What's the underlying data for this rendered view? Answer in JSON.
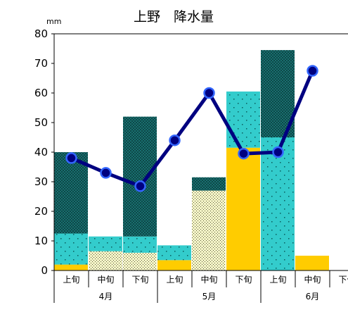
{
  "chart_data": {
    "type": "bar",
    "title": "上野　降水量",
    "ylabel": "mm",
    "ylim": [
      0,
      80
    ],
    "yticks": [
      0,
      10,
      20,
      30,
      40,
      50,
      60,
      70,
      80
    ],
    "categories": [
      "上旬",
      "中旬",
      "下旬",
      "上旬",
      "中旬",
      "下旬",
      "上旬",
      "中旬",
      "下旬"
    ],
    "months": [
      "4月",
      "5月",
      "6月"
    ],
    "stacked": true,
    "series": [
      {
        "values": [
          2,
          0,
          0,
          3.5,
          0,
          41.5,
          0,
          5,
          0
        ],
        "color": "#ffcc00",
        "pattern": "solid"
      },
      {
        "values": [
          0,
          6.5,
          6,
          0,
          27,
          0,
          0,
          0,
          0
        ],
        "color": "#f5f5c8",
        "pattern": "dots-dark"
      },
      {
        "values": [
          10.5,
          5,
          5.5,
          5,
          0,
          19,
          45,
          0,
          0
        ],
        "color": "#33cccc",
        "pattern": "dots-white"
      },
      {
        "values": [
          27.5,
          0,
          40.5,
          0,
          4.5,
          0,
          29.5,
          0,
          0
        ],
        "color": "#33cccc",
        "pattern": "crosshatch"
      }
    ],
    "line": {
      "values": [
        38,
        33,
        28.5,
        44,
        60,
        39.5,
        40,
        67.5,
        null
      ],
      "color": "#000080",
      "marker_color": "#3366ff"
    },
    "grid": false,
    "legend": "none"
  }
}
